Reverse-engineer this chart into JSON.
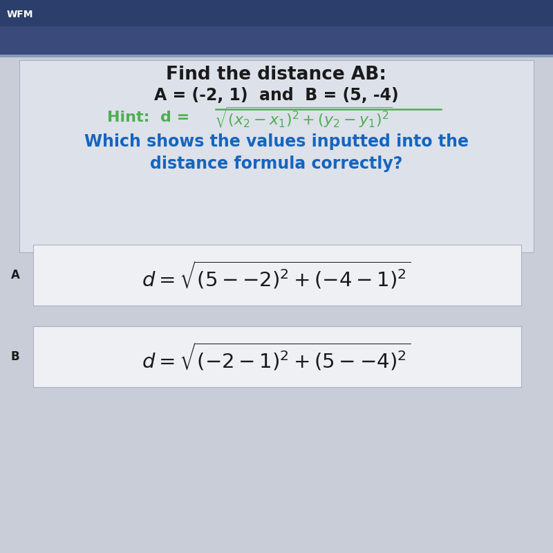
{
  "bg_top_color": "#2c3e6b",
  "bg_main_color": "#c8cdd8",
  "bg_card_color": "#dde1ea",
  "bg_answer_color": "#eef0f4",
  "text_color_black": "#1a1a1a",
  "text_color_green": "#4caf50",
  "text_color_blue": "#1565c0",
  "wfm_label": "WFM",
  "title_line1": "Find the distance AB:",
  "title_line2": "A = (-2, 1)  and  B = (5, -4)",
  "hint_prefix": "Hint:  d = ",
  "question_line1": "Which shows the values inputted into the",
  "question_line2": "distance formula correctly?",
  "label_A": "A",
  "label_B": "B"
}
